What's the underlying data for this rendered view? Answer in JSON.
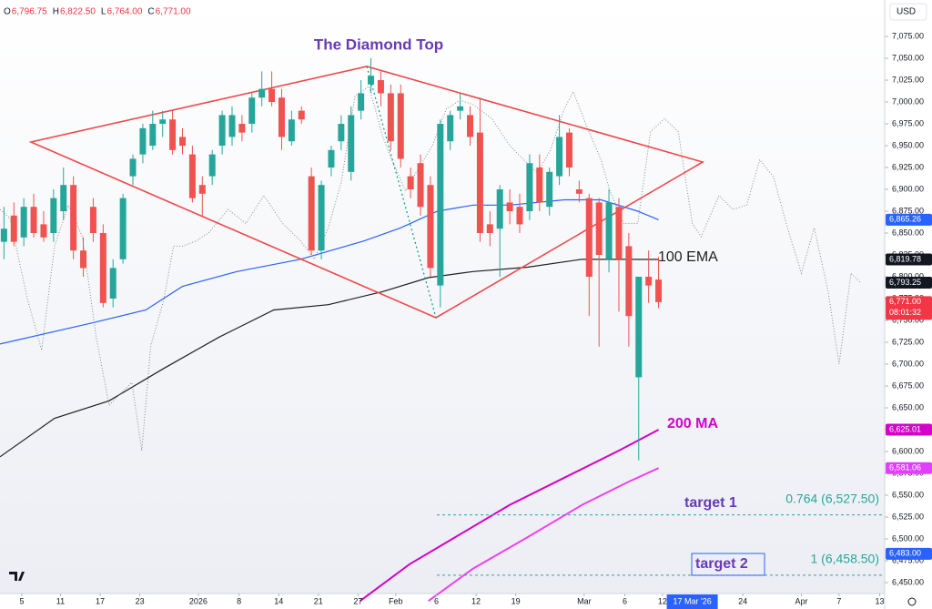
{
  "chart_data": {
    "type": "candlestick",
    "title": "The Diamond Top",
    "currency": "USD",
    "header": [
      {
        "label": "O",
        "value": "6,796.75"
      },
      {
        "label": "H",
        "value": "6,822.50"
      },
      {
        "label": "L",
        "value": "6,764.00"
      },
      {
        "label": "C",
        "value": "6,771.00"
      }
    ],
    "up_color": "#26a69a",
    "down_color": "#ef5350",
    "open": [
      6840,
      6870,
      6845,
      6880,
      6860,
      6850,
      6875,
      6905,
      6830,
      6880,
      6850,
      6775,
      6820,
      6915,
      6940,
      6950,
      6975,
      6980,
      6960,
      6940,
      6905,
      6915,
      6950,
      6960,
      6975,
      6975,
      7005,
      7015,
      7005,
      6955,
      6990,
      6915,
      6830,
      6925,
      6955,
      6920,
      6990,
      7020,
      7025,
      7010,
      7010,
      6915,
      6930,
      6905,
      6790,
      6955,
      6990,
      6985,
      6965,
      6860,
      6855,
      6885,
      6880,
      6875,
      6925,
      6880,
      6915,
      6965,
      6900,
      6890,
      6885,
      6820,
      6880,
      6835,
      6685,
      6800,
      6796.75
    ],
    "high": [
      6880,
      6885,
      6890,
      6895,
      6875,
      6900,
      6925,
      6915,
      6845,
      6890,
      6860,
      6820,
      6895,
      6940,
      6975,
      6990,
      6990,
      6990,
      6970,
      6950,
      6915,
      6945,
      6990,
      6995,
      6985,
      7010,
      7035,
      7035,
      7015,
      6990,
      6995,
      6925,
      6910,
      6950,
      6985,
      6995,
      7025,
      7050,
      7035,
      7020,
      7020,
      6925,
      6940,
      6915,
      6980,
      6990,
      7010,
      6995,
      7005,
      6875,
      6905,
      6900,
      6895,
      6940,
      6940,
      6925,
      6985,
      6970,
      6910,
      6895,
      6890,
      6900,
      6890,
      6850,
      6800,
      6830,
      6822.5
    ],
    "low": [
      6820,
      6835,
      6835,
      6845,
      6840,
      6840,
      6865,
      6820,
      6800,
      6840,
      6765,
      6765,
      6815,
      6905,
      6930,
      6945,
      6960,
      6940,
      6940,
      6885,
      6870,
      6905,
      6940,
      6950,
      6955,
      6965,
      6995,
      6995,
      6945,
      6950,
      6975,
      6825,
      6820,
      6915,
      6945,
      6910,
      6980,
      7010,
      6995,
      6945,
      6925,
      6890,
      6870,
      6800,
      6765,
      6945,
      6980,
      6950,
      6840,
      6835,
      6800,
      6860,
      6850,
      6865,
      6875,
      6870,
      6905,
      6915,
      6885,
      6755,
      6720,
      6805,
      6760,
      6720,
      6590,
      6770,
      6764
    ],
    "close": [
      6855,
      6840,
      6880,
      6850,
      6845,
      6890,
      6905,
      6830,
      6810,
      6850,
      6770,
      6810,
      6890,
      6935,
      6970,
      6975,
      6980,
      6945,
      6950,
      6890,
      6895,
      6940,
      6985,
      6985,
      6965,
      7005,
      7015,
      7000,
      6960,
      6980,
      6980,
      6830,
      6905,
      6945,
      6975,
      6985,
      7010,
      7030,
      7010,
      6955,
      6935,
      6900,
      6880,
      6810,
      6975,
      6985,
      6995,
      6960,
      6850,
      6850,
      6900,
      6875,
      6860,
      6930,
      6885,
      6920,
      6960,
      6925,
      6895,
      6800,
      6825,
      6885,
      6820,
      6755,
      6800,
      6790,
      6771
    ],
    "lines": [
      {
        "color": "#2962ff",
        "x": [
          -0.4,
          8.8,
          14.3,
          18.0,
          23.5,
          29.9,
          36.3,
          40.0,
          43.7,
          47.3,
          51.0,
          56.5,
          60.2,
          63.9,
          66
        ],
        "values": [
          6723,
          6747,
          6762,
          6789,
          6806,
          6820,
          6841,
          6856,
          6875,
          6882,
          6882,
          6888,
          6888,
          6875,
          6865.26
        ]
      },
      {
        "name": "100 EMA",
        "color": "#1f1f1f",
        "x": [
          -0.4,
          5.1,
          10.6,
          16.1,
          21.7,
          27.2,
          32.7,
          38.2,
          42.8,
          47.3,
          52.8,
          58.3,
          66
        ],
        "values": [
          6594,
          6638,
          6658,
          6695,
          6731,
          6762,
          6768,
          6783,
          6799,
          6806,
          6811,
          6820,
          6819.78
        ]
      },
      {
        "name": "200 MA",
        "color": "#d500c9",
        "x": [
          35.9,
          40.9,
          45.5,
          51.0,
          56.5,
          62.0,
          66
        ],
        "values": [
          6429,
          6471,
          6502,
          6539,
          6570,
          6601,
          6625.01
        ]
      },
      {
        "color": "#f23fef",
        "x": [
          42.8,
          47.3,
          52.8,
          58.3,
          62.9,
          66
        ],
        "values": [
          6429,
          6466,
          6502,
          6539,
          6565,
          6581.06
        ]
      },
      {
        "color": "#8a8a8a",
        "dotted": true,
        "x": [
          -0.4,
          0.6,
          2.4,
          3.8,
          5.1,
          6.5,
          7.9,
          9.3,
          10.6,
          12.0,
          12.9,
          13.9,
          14.8,
          16.1,
          17.1,
          18.0,
          19.4,
          20.7,
          22.6,
          24.4,
          26.2,
          28.1,
          29.9,
          31.3,
          32.7,
          34.0,
          35.4,
          36.8,
          38.2,
          39.1,
          40.5,
          41.8,
          43.2,
          44.6,
          46.0,
          47.3,
          49.2,
          51.0,
          52.4,
          53.8,
          55.1,
          56.5,
          57.4,
          58.8,
          60.2,
          61.1,
          62.5,
          63.9,
          65.2,
          66.6,
          68.0,
          69.4,
          70.3,
          72.1,
          73.5,
          74.9,
          76.2,
          77.6,
          79.0,
          80.4,
          81.7,
          83.1,
          84.2,
          85.4,
          86.3
        ],
        "values": [
          6877,
          6867,
          6773,
          6716,
          6835,
          6882,
          6846,
          6731,
          6653,
          6669,
          6679,
          6601,
          6721,
          6773,
          6835,
          6835,
          6841,
          6851,
          6877,
          6861,
          6893,
          6861,
          6841,
          6820,
          6856,
          6908,
          7007,
          7018,
          6960,
          6934,
          6898,
          6924,
          6950,
          6992,
          7002,
          6997,
          6981,
          6950,
          6934,
          6919,
          6945,
          6992,
          7012,
          6971,
          6934,
          6898,
          6861,
          6861,
          6966,
          6981,
          6966,
          6861,
          6846,
          6893,
          6877,
          6882,
          6934,
          6914,
          6856,
          6804,
          6856,
          6783,
          6700,
          6804,
          6794
        ]
      }
    ],
    "fib": [
      {
        "value": 6527.5,
        "label": "0.764 (6,527.50)",
        "target": "target 1"
      },
      {
        "value": 6458.5,
        "label": "1 (6,458.50)",
        "target": "target 2"
      }
    ],
    "price_tags": [
      {
        "value": 6865.26,
        "label": "6,865.26",
        "color": "#2962ff"
      },
      {
        "value": 6819.78,
        "label": "6,819.78",
        "color": "#131722"
      },
      {
        "value": 6793.25,
        "label": "6,793.25",
        "color": "#131722"
      },
      {
        "value": 6771,
        "label": "6,771.00",
        "color": "#f23645",
        "timer": "08:01:32"
      },
      {
        "value": 6625.01,
        "label": "6,625.01",
        "color": "#d500c9"
      },
      {
        "value": 6581.06,
        "label": "6,581.06",
        "color": "#e040fb"
      },
      {
        "value": 6483,
        "label": "6,483.00",
        "color": "#2962ff"
      }
    ],
    "ylim": [
      6437.5,
      7116.7
    ],
    "yticks": [
      {
        "value": 7075,
        "label": "7,075.00"
      },
      {
        "value": 7050,
        "label": "7,050.00"
      },
      {
        "value": 7025,
        "label": "7,025.00"
      },
      {
        "value": 7000,
        "label": "7,000.00"
      },
      {
        "value": 6975,
        "label": "6,975.00"
      },
      {
        "value": 6950,
        "label": "6,950.00"
      },
      {
        "value": 6925,
        "label": "6,925.00"
      },
      {
        "value": 6900,
        "label": "6,900.00"
      },
      {
        "value": 6875,
        "label": "6,875.00"
      },
      {
        "value": 6850,
        "label": "6,850.00"
      },
      {
        "value": 6825,
        "label": "6,825.00"
      },
      {
        "value": 6800,
        "label": "6,800.00"
      },
      {
        "value": 6775,
        "label": "6,775.00"
      },
      {
        "value": 6750,
        "label": "6,750.00"
      },
      {
        "value": 6725,
        "label": "6,725.00"
      },
      {
        "value": 6700,
        "label": "6,700.00"
      },
      {
        "value": 6675,
        "label": "6,675.00"
      },
      {
        "value": 6650,
        "label": "6,650.00"
      },
      {
        "value": 6625,
        "label": "6,625.00"
      },
      {
        "value": 6600,
        "label": "6,600.00"
      },
      {
        "value": 6575,
        "label": "6,575.00"
      },
      {
        "value": 6550,
        "label": "6,550.00"
      },
      {
        "value": 6525,
        "label": "6,525.00"
      },
      {
        "value": 6500,
        "label": "6,500.00"
      },
      {
        "value": 6475,
        "label": "6,475.00"
      },
      {
        "value": 6450,
        "label": "6,450.00"
      }
    ],
    "xlim": [
      -0.4,
      88.8
    ],
    "xticks": [
      {
        "value": 1.8,
        "label": "5"
      },
      {
        "value": 5.7,
        "label": "11"
      },
      {
        "value": 9.7,
        "label": "17"
      },
      {
        "value": 13.7,
        "label": "23"
      },
      {
        "value": 19.6,
        "label": "2026"
      },
      {
        "value": 23.7,
        "label": "8"
      },
      {
        "value": 27.7,
        "label": "14"
      },
      {
        "value": 31.7,
        "label": "21"
      },
      {
        "value": 35.7,
        "label": "27"
      },
      {
        "value": 39.5,
        "label": "Feb"
      },
      {
        "value": 43.6,
        "label": "6"
      },
      {
        "value": 47.6,
        "label": "12"
      },
      {
        "value": 51.6,
        "label": "19"
      },
      {
        "value": 58.5,
        "label": "Mar"
      },
      {
        "value": 62.6,
        "label": "6"
      },
      {
        "value": 66.4,
        "label": "12"
      },
      {
        "value": 74.5,
        "label": "24"
      },
      {
        "value": 80.4,
        "label": "Apr"
      },
      {
        "value": 84.2,
        "label": "7"
      },
      {
        "value": 88.3,
        "label": "13"
      }
    ],
    "xcursor": {
      "value": 69.4,
      "label": "17 Mar '26"
    }
  }
}
